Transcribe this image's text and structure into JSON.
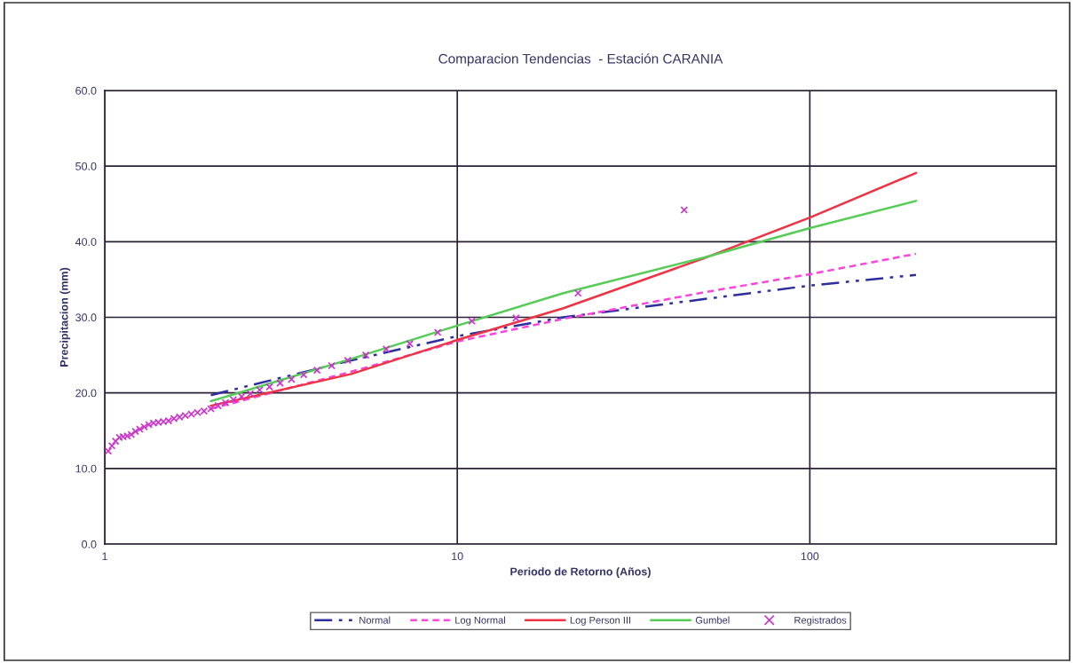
{
  "chart_data": {
    "type": "line",
    "title": "Comparacion Tendencias  - Estación CARANIA",
    "xlabel": "Periodo de Retorno (Años)",
    "ylabel": "Precipitacion (mm)",
    "log": "x",
    "xlim": [
      1,
      500
    ],
    "xticks": [
      1,
      10,
      100
    ],
    "ylim": [
      0,
      60
    ],
    "yticks": [
      {
        "value": 0,
        "label": "0.0"
      },
      {
        "value": 10,
        "label": "10.0"
      },
      {
        "value": 20,
        "label": "20.0"
      },
      {
        "value": 30,
        "label": "30.0"
      },
      {
        "value": 40,
        "label": "40.0"
      },
      {
        "value": 50,
        "label": "50.0"
      },
      {
        "value": 60,
        "label": "60.0"
      }
    ],
    "grid": true,
    "legend": "bottom",
    "series": [
      {
        "name": "Normal",
        "color": "#2e2e9e",
        "line_style": "dashed",
        "marker": "none",
        "x": [
          2,
          5,
          10,
          20,
          50,
          100,
          200
        ],
        "values": [
          19.7,
          24.3,
          27.5,
          30.0,
          32.4,
          34.2,
          35.6
        ]
      },
      {
        "name": "Log Normal",
        "color": "#ff44dd",
        "line_style": "dotted",
        "marker": "none",
        "x": [
          2,
          5,
          10,
          20,
          50,
          100,
          200
        ],
        "values": [
          17.9,
          22.8,
          26.8,
          29.8,
          33.3,
          35.7,
          38.4
        ]
      },
      {
        "name": "Log Person III",
        "color": "#ee3344",
        "line_style": "solid",
        "marker": "none",
        "x": [
          2,
          5,
          10,
          20,
          50,
          100,
          200
        ],
        "values": [
          18.3,
          22.5,
          27.0,
          31.2,
          37.8,
          43.2,
          49.1
        ]
      },
      {
        "name": "Gumbel",
        "color": "#55cc55",
        "line_style": "solid",
        "marker": "none",
        "x": [
          2,
          5,
          10,
          20,
          50,
          100,
          200
        ],
        "values": [
          18.9,
          24.5,
          28.9,
          33.2,
          37.9,
          41.8,
          45.4
        ]
      },
      {
        "name": "Registrados",
        "type": "scatter",
        "color": "#cc33cc",
        "marker": "cross",
        "x": [
          1.023,
          1.048,
          1.073,
          1.1,
          1.128,
          1.158,
          1.189,
          1.222,
          1.257,
          1.294,
          1.333,
          1.375,
          1.419,
          1.467,
          1.517,
          1.571,
          1.63,
          1.692,
          1.76,
          1.833,
          1.913,
          2.0,
          2.095,
          2.2,
          2.316,
          2.444,
          2.588,
          2.75,
          2.933,
          3.143,
          3.385,
          3.667,
          4.0,
          4.4,
          4.889,
          5.5,
          6.286,
          7.333,
          8.8,
          11,
          14.67,
          22,
          44
        ],
        "values": [
          12.3,
          13.0,
          13.6,
          14.1,
          14.2,
          14.3,
          14.5,
          14.9,
          15.2,
          15.5,
          15.8,
          16.0,
          16.1,
          16.2,
          16.3,
          16.6,
          16.8,
          17.0,
          17.2,
          17.4,
          17.6,
          17.9,
          18.3,
          18.7,
          19.1,
          19.5,
          19.9,
          20.4,
          20.8,
          21.3,
          21.8,
          22.4,
          23.0,
          23.6,
          24.3,
          25.0,
          25.8,
          26.5,
          28.0,
          29.5,
          29.9,
          33.2,
          44.2
        ]
      }
    ]
  }
}
